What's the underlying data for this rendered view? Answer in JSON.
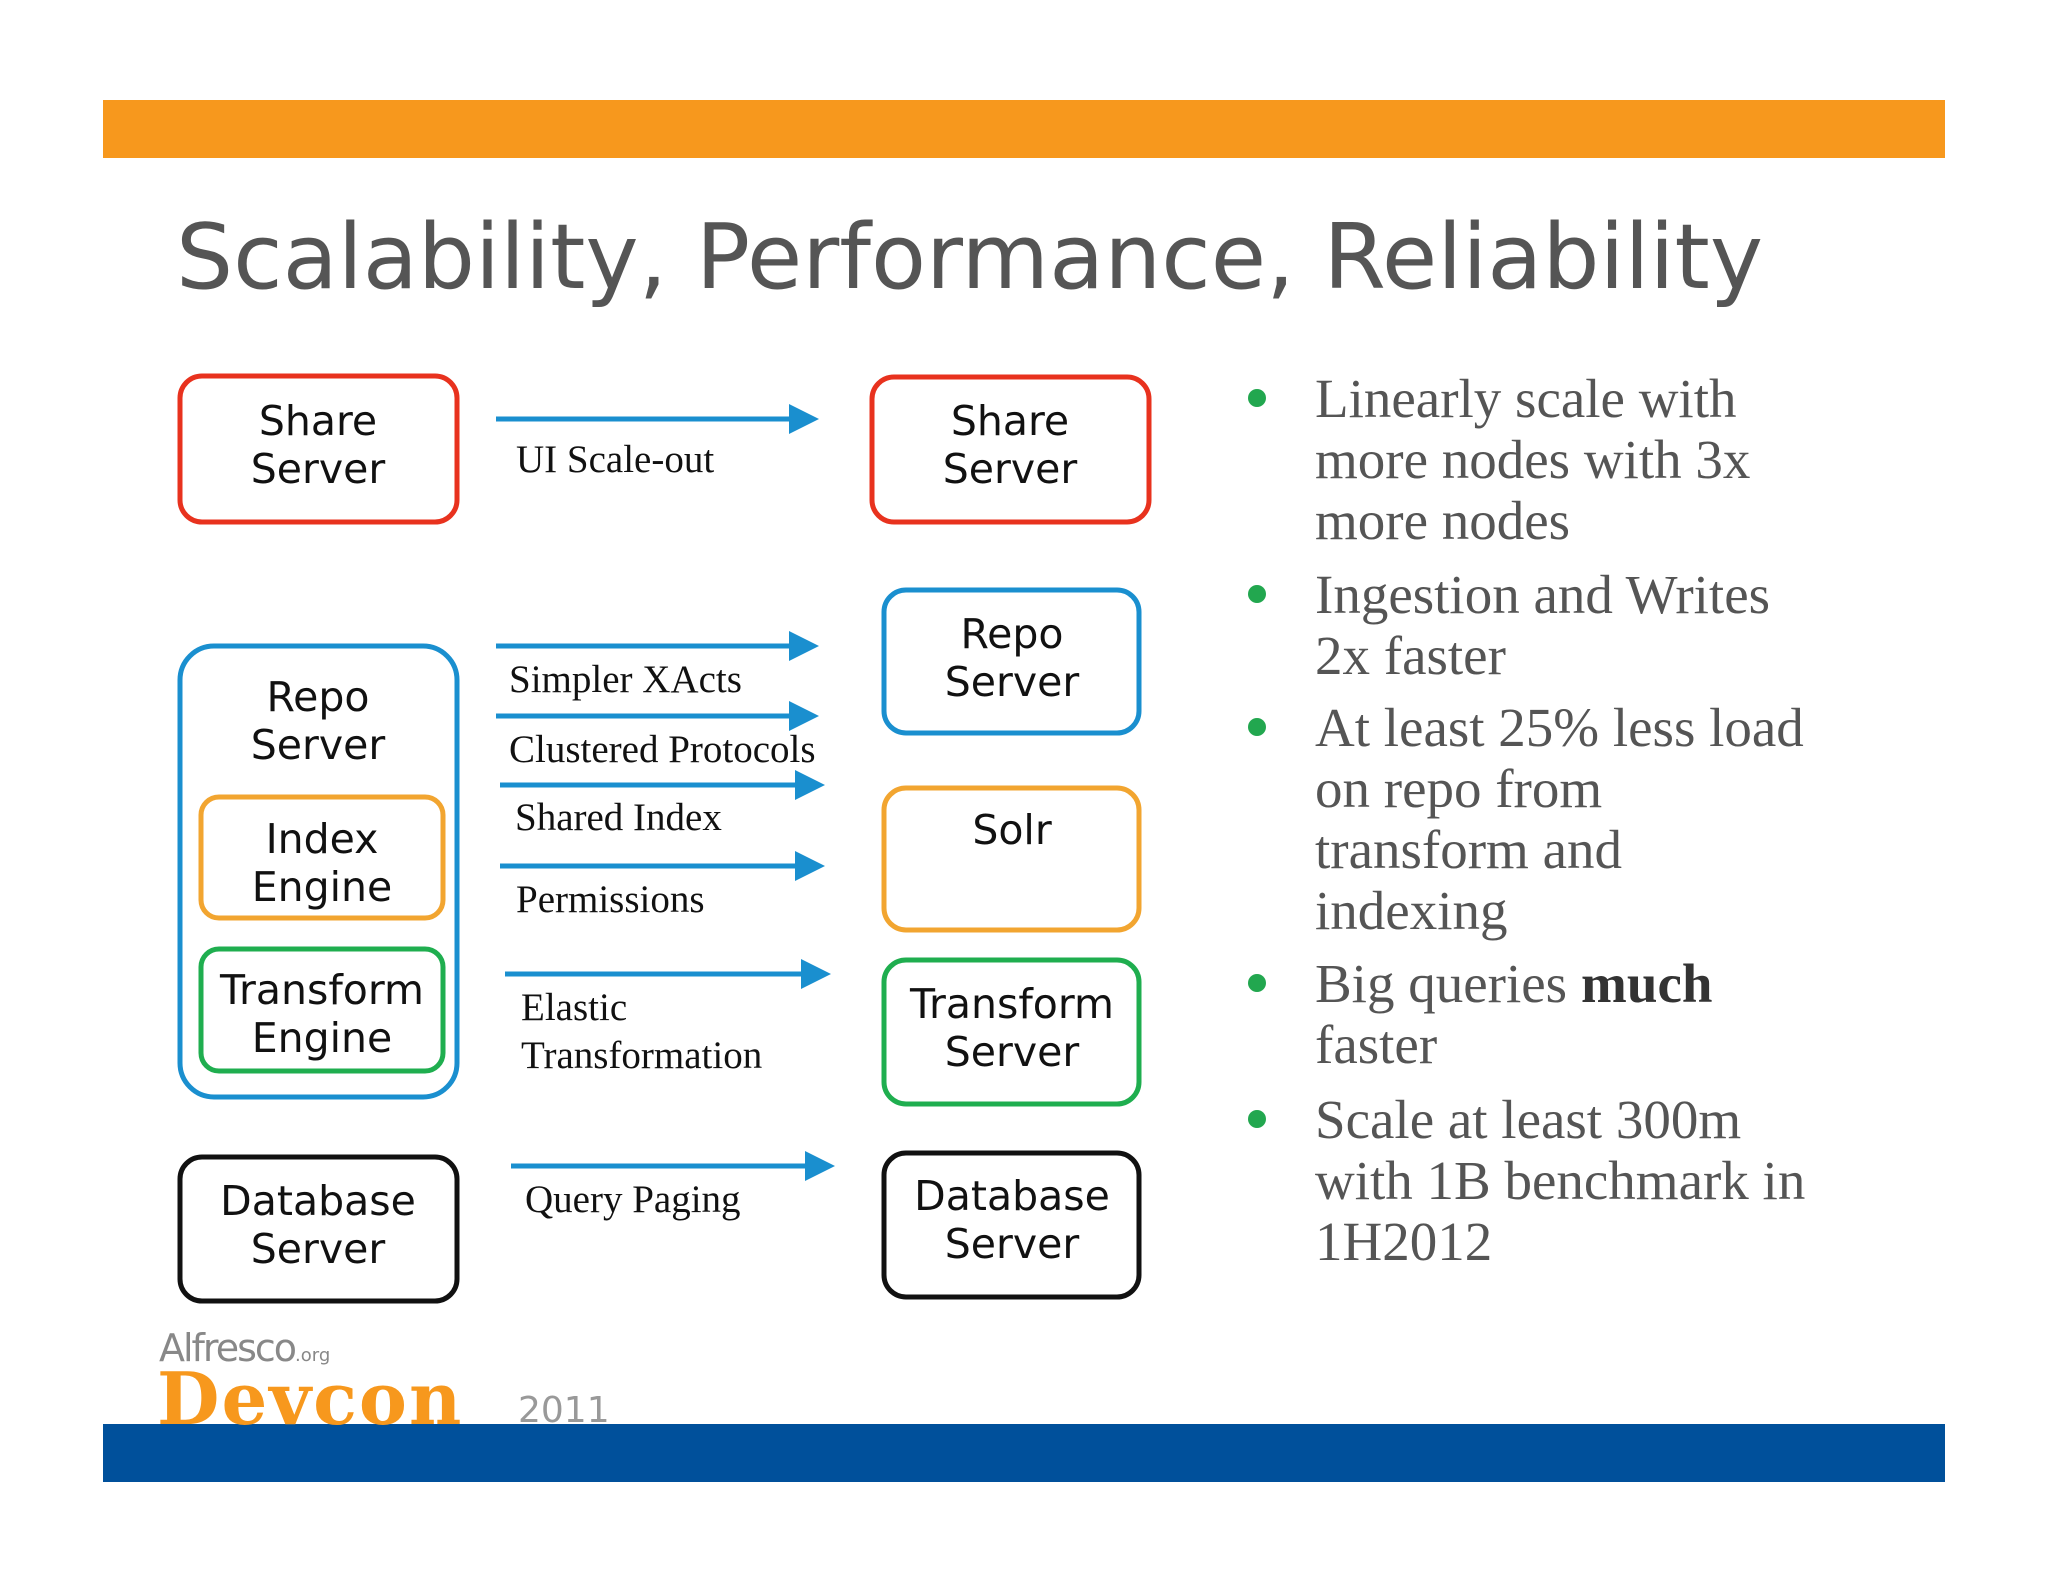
{
  "title": "Scalability, Performance, Reliability",
  "left_boxes": {
    "share": "Share Server",
    "repo": "Repo Server",
    "index": "Index Engine",
    "transform": "Transform Engine",
    "database": "Database Server"
  },
  "right_boxes": {
    "share": "Share Server",
    "repo": "Repo Server",
    "solr": "Solr",
    "transform": "Transform Server",
    "database": "Database Server"
  },
  "arrows": [
    "UI Scale-out",
    "Simpler XActs",
    "Clustered Protocols",
    "Shared Index",
    "Permissions",
    "Elastic Transformation",
    "Query Paging"
  ],
  "bullets": [
    {
      "lines": [
        "Linearly scale with",
        "more nodes with 3x",
        "more nodes"
      ]
    },
    {
      "lines": [
        "Ingestion and Writes",
        "2x faster"
      ]
    },
    {
      "lines": [
        "At least 25% less load",
        "on repo from",
        "transform and",
        "indexing"
      ]
    },
    {
      "lines": [
        "Big queries",
        "faster"
      ],
      "emphasis": "much"
    },
    {
      "lines": [
        "Scale at least 300m",
        "with 1B benchmark in",
        "1H2012"
      ]
    }
  ],
  "logo": {
    "brand": "Alfresco",
    "domain": ".org",
    "event": "Devcon",
    "year": "2011"
  }
}
